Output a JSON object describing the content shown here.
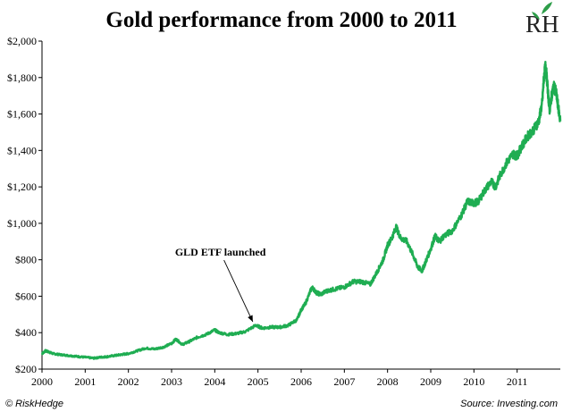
{
  "logo": {
    "text": "RH",
    "leaf_color": "#2e9e4a"
  },
  "footer": {
    "left": "© RiskHedge",
    "right": "Source: Investing.com"
  },
  "chart_data": {
    "type": "line",
    "title": "Gold performance from 2000 to 2011",
    "xlabel": "",
    "ylabel": "",
    "xlim": [
      2000,
      2012
    ],
    "ylim": [
      200,
      2000
    ],
    "x_ticks": [
      2000,
      2001,
      2002,
      2003,
      2004,
      2005,
      2006,
      2007,
      2008,
      2009,
      2010,
      2011
    ],
    "x_tick_labels": [
      "2000",
      "2001",
      "2002",
      "2003",
      "2004",
      "2005",
      "2006",
      "2007",
      "2008",
      "2009",
      "2010",
      "2011"
    ],
    "y_ticks": [
      200,
      400,
      600,
      800,
      1000,
      1200,
      1400,
      1600,
      1800,
      2000
    ],
    "y_tick_labels": [
      "$200",
      "$400",
      "$600",
      "$800",
      "$1,000",
      "$1,200",
      "$1,400",
      "$1,600",
      "$1,800",
      "$2,000"
    ],
    "grid": false,
    "line_color": "#1fad52",
    "series": [
      {
        "x": [
          2000.0,
          2000.08,
          2000.15,
          2000.25,
          2000.4,
          2000.6,
          2000.8,
          2001.0,
          2001.2,
          2001.35,
          2001.5,
          2001.7,
          2001.85,
          2002.0,
          2002.2,
          2002.4,
          2002.6,
          2002.8,
          2003.0,
          2003.1,
          2003.25,
          2003.4,
          2003.6,
          2003.8,
          2004.0,
          2004.1,
          2004.3,
          2004.5,
          2004.7,
          2004.95,
          2005.1,
          2005.3,
          2005.5,
          2005.7,
          2005.9,
          2006.0,
          2006.1,
          2006.25,
          2006.35,
          2006.45,
          2006.6,
          2006.8,
          2007.0,
          2007.2,
          2007.4,
          2007.6,
          2007.75,
          2007.9,
          2008.0,
          2008.1,
          2008.2,
          2008.3,
          2008.45,
          2008.6,
          2008.7,
          2008.8,
          2008.9,
          2009.0,
          2009.1,
          2009.2,
          2009.3,
          2009.5,
          2009.7,
          2009.85,
          2010.0,
          2010.1,
          2010.25,
          2010.4,
          2010.5,
          2010.6,
          2010.75,
          2010.9,
          2011.0,
          2011.1,
          2011.25,
          2011.4,
          2011.5,
          2011.58,
          2011.62,
          2011.66,
          2011.7,
          2011.75,
          2011.8,
          2011.85,
          2011.9,
          2011.95,
          2012.0
        ],
        "values": [
          285,
          300,
          295,
          285,
          280,
          275,
          270,
          265,
          260,
          265,
          268,
          275,
          280,
          285,
          300,
          315,
          310,
          320,
          340,
          365,
          335,
          350,
          375,
          390,
          415,
          400,
          390,
          395,
          405,
          440,
          425,
          430,
          430,
          440,
          470,
          525,
          560,
          650,
          620,
          610,
          630,
          640,
          650,
          680,
          680,
          665,
          730,
          800,
          880,
          920,
          980,
          920,
          900,
          820,
          760,
          740,
          800,
          860,
          930,
          900,
          930,
          960,
          1040,
          1120,
          1110,
          1120,
          1180,
          1230,
          1200,
          1260,
          1330,
          1380,
          1370,
          1420,
          1480,
          1520,
          1560,
          1660,
          1800,
          1870,
          1760,
          1620,
          1700,
          1750,
          1720,
          1640,
          1560
        ]
      }
    ],
    "annotation": {
      "text": "GLD ETF launched",
      "x": 2004.88,
      "y": 440
    }
  }
}
